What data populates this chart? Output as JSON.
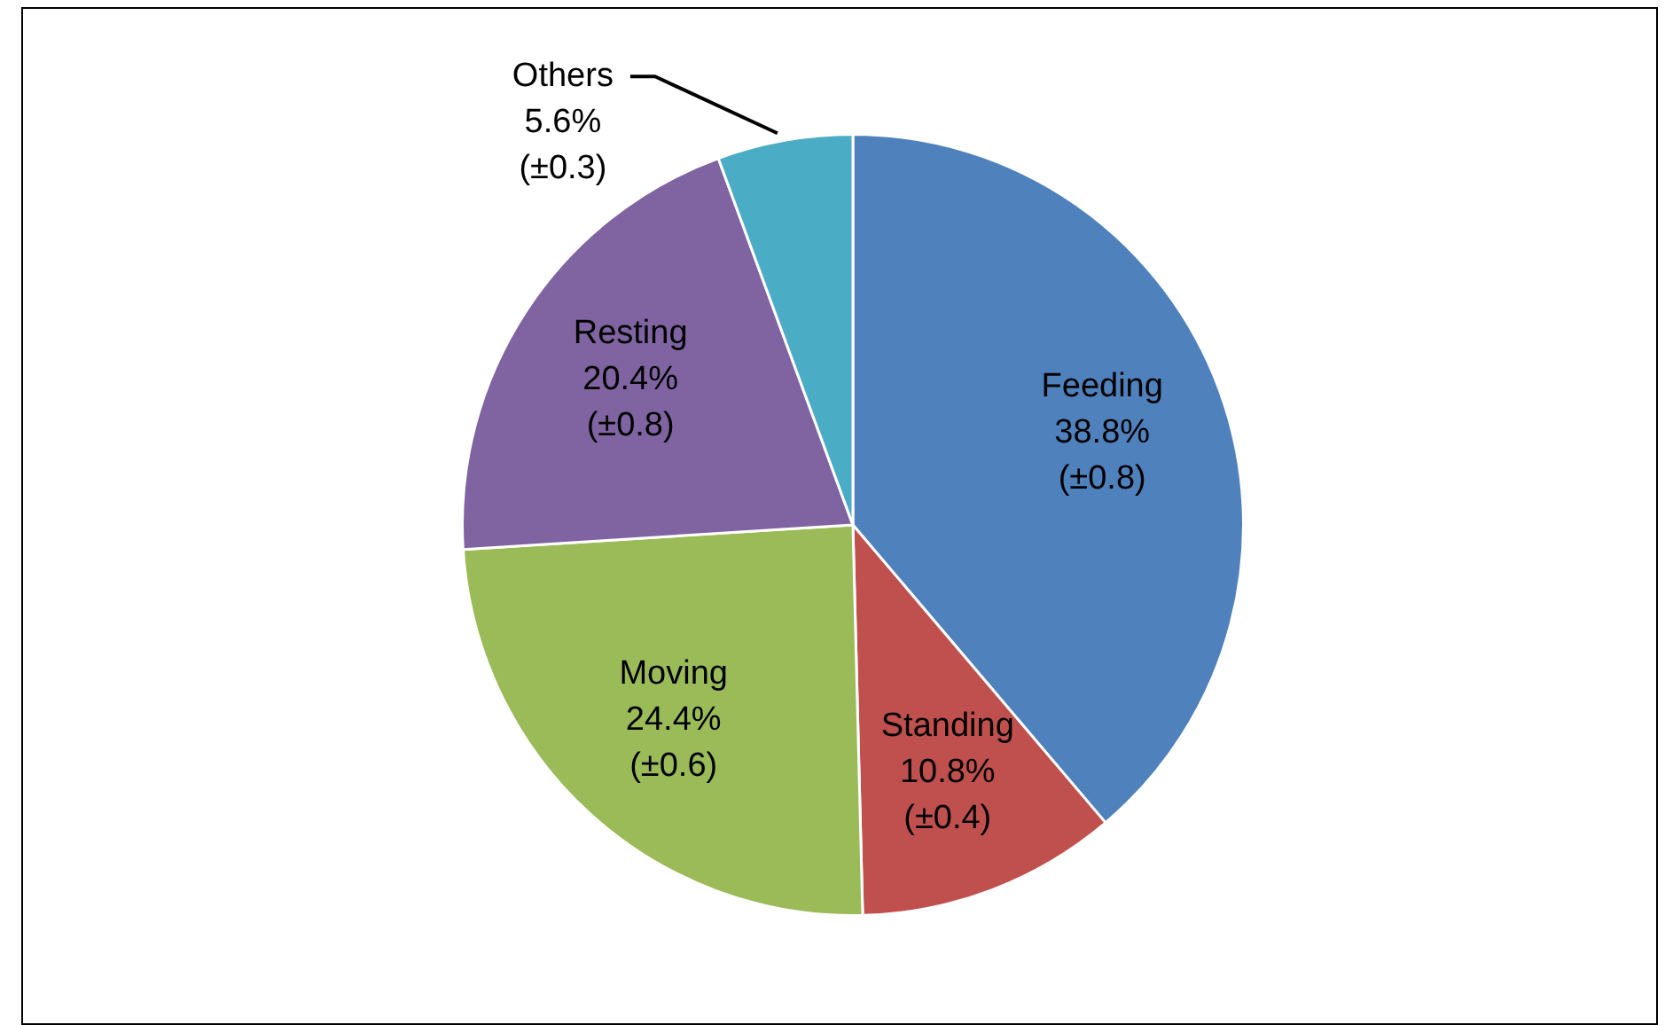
{
  "chart_data": {
    "type": "pie",
    "categories": [
      "Feeding",
      "Standing",
      "Moving",
      "Resting",
      "Others"
    ],
    "values": [
      38.8,
      10.8,
      24.4,
      20.4,
      5.6
    ],
    "colors": [
      "#4f81bd",
      "#c0504d",
      "#9bbb59",
      "#8064a2",
      "#4bacc6"
    ],
    "value_labels": [
      "38.8%\n(±0.8)",
      "10.8%\n(±0.4)",
      "24.4%\n(±0.6)",
      "20.4%\n(±0.8)",
      "5.6%\n(±0.3)"
    ],
    "legend": false
  }
}
